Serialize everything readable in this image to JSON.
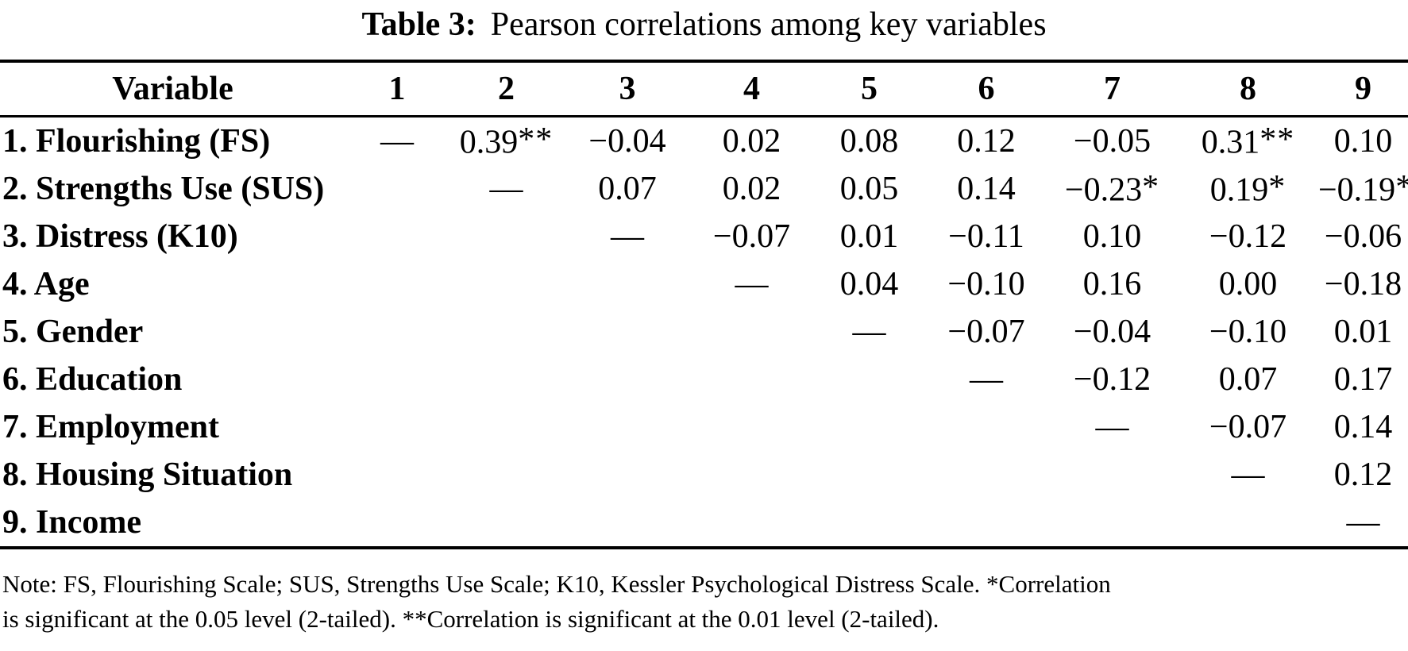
{
  "caption": {
    "label": "Table 3:",
    "text": "Pearson correlations among key variables"
  },
  "table": {
    "header": [
      "Variable",
      "1",
      "2",
      "3",
      "4",
      "5",
      "6",
      "7",
      "8",
      "9"
    ],
    "rows": [
      {
        "label": "1. Flourishing (FS)",
        "values": [
          "—",
          "0.39**",
          "−0.04",
          "0.02",
          "0.08",
          "0.12",
          "−0.05",
          "0.31**",
          "0.10"
        ]
      },
      {
        "label": "2. Strengths Use (SUS)",
        "values": [
          "",
          "—",
          "0.07",
          "0.02",
          "0.05",
          "0.14",
          "−0.23*",
          "0.19*",
          "−0.19*"
        ]
      },
      {
        "label": "3. Distress (K10)",
        "values": [
          "",
          "",
          "—",
          "−0.07",
          "0.01",
          "−0.11",
          "0.10",
          "−0.12",
          "−0.06"
        ]
      },
      {
        "label": "4. Age",
        "values": [
          "",
          "",
          "",
          "—",
          "0.04",
          "−0.10",
          "0.16",
          "0.00",
          "−0.18"
        ]
      },
      {
        "label": "5. Gender",
        "values": [
          "",
          "",
          "",
          "",
          "—",
          "−0.07",
          "−0.04",
          "−0.10",
          "0.01"
        ]
      },
      {
        "label": "6. Education",
        "values": [
          "",
          "",
          "",
          "",
          "",
          "—",
          "−0.12",
          "0.07",
          "0.17"
        ]
      },
      {
        "label": "7. Employment",
        "values": [
          "",
          "",
          "",
          "",
          "",
          "",
          "—",
          "−0.07",
          "0.14"
        ]
      },
      {
        "label": "8. Housing Situation",
        "values": [
          "",
          "",
          "",
          "",
          "",
          "",
          "",
          "—",
          "0.12"
        ]
      },
      {
        "label": "9. Income",
        "values": [
          "",
          "",
          "",
          "",
          "",
          "",
          "",
          "",
          "—"
        ]
      }
    ]
  },
  "note": {
    "lines": [
      "Note: FS, Flourishing Scale; SUS, Strengths Use Scale; K10, Kessler Psychological Distress Scale. *Correlation",
      "is significant at the 0.05 level (2-tailed). **Correlation is significant at the 0.01 level (2-tailed)."
    ]
  },
  "colors": {
    "text": "#000000",
    "background": "#ffffff",
    "rule": "#000000"
  }
}
